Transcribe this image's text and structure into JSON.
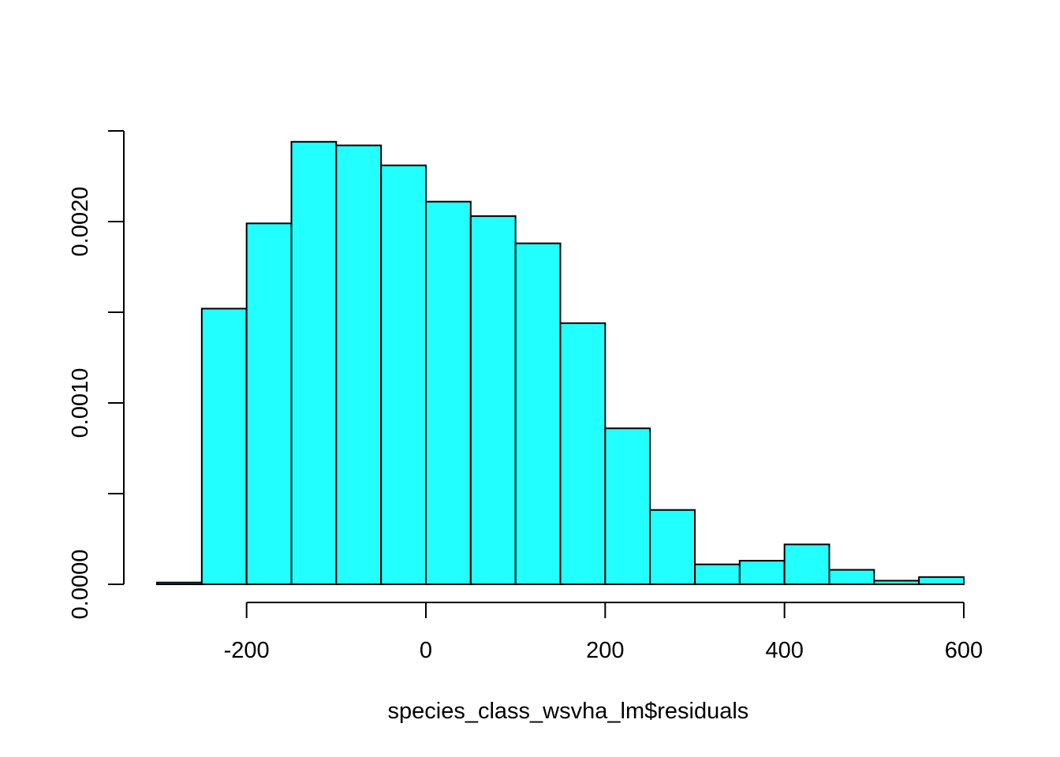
{
  "chart_data": {
    "type": "bar",
    "subtype": "histogram",
    "title": "",
    "xlabel": "species_class_wsvha_lm$residuals",
    "ylabel": "",
    "bin_edges": [
      -300,
      -250,
      -200,
      -150,
      -100,
      -50,
      0,
      50,
      100,
      150,
      200,
      250,
      300,
      350,
      400,
      450,
      500,
      550,
      600
    ],
    "values": [
      1e-05,
      0.00152,
      0.00199,
      0.00244,
      0.00242,
      0.00231,
      0.00211,
      0.00203,
      0.00188,
      0.00144,
      0.00086,
      0.00041,
      0.00011,
      0.00013,
      0.00022,
      8e-05,
      2e-05,
      4e-05
    ],
    "xlim": [
      -300,
      600
    ],
    "ylim": [
      0,
      0.0025
    ],
    "x_ticks": [
      -200,
      0,
      200,
      400,
      600
    ],
    "x_tick_labels": [
      "-200",
      "0",
      "200",
      "400",
      "600"
    ],
    "y_ticks": [
      0,
      0.0005,
      0.001,
      0.0015,
      0.002,
      0.0025
    ],
    "y_tick_labels": [
      "0.0000",
      "",
      "0.0010",
      "",
      "0.0020",
      ""
    ],
    "bar_color": "#22FFFF",
    "edge_color": "#000000",
    "grid": false,
    "legend": "none"
  }
}
